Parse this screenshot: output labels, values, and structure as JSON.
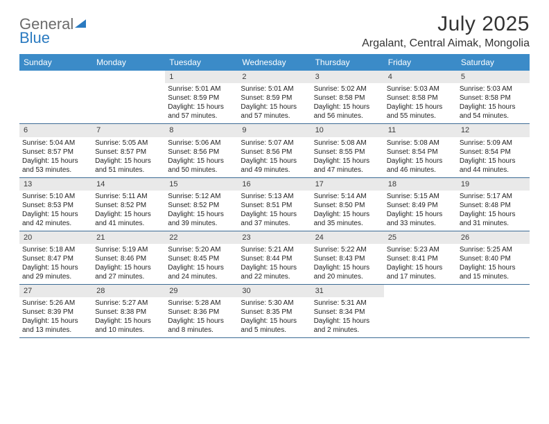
{
  "logo": {
    "text1": "General",
    "text2": "Blue"
  },
  "title": "July 2025",
  "location": "Argalant, Central Aimak, Mongolia",
  "colors": {
    "header_bg": "#3b8bc8",
    "header_text": "#ffffff",
    "daynum_bg": "#e9e9e9",
    "border": "#3b6a94",
    "logo_gray": "#6b6b6b",
    "logo_blue": "#2a7ac0"
  },
  "days_of_week": [
    "Sunday",
    "Monday",
    "Tuesday",
    "Wednesday",
    "Thursday",
    "Friday",
    "Saturday"
  ],
  "weeks": [
    [
      null,
      null,
      {
        "n": "1",
        "sr": "5:01 AM",
        "ss": "8:59 PM",
        "dl": "15 hours and 57 minutes."
      },
      {
        "n": "2",
        "sr": "5:01 AM",
        "ss": "8:59 PM",
        "dl": "15 hours and 57 minutes."
      },
      {
        "n": "3",
        "sr": "5:02 AM",
        "ss": "8:58 PM",
        "dl": "15 hours and 56 minutes."
      },
      {
        "n": "4",
        "sr": "5:03 AM",
        "ss": "8:58 PM",
        "dl": "15 hours and 55 minutes."
      },
      {
        "n": "5",
        "sr": "5:03 AM",
        "ss": "8:58 PM",
        "dl": "15 hours and 54 minutes."
      }
    ],
    [
      {
        "n": "6",
        "sr": "5:04 AM",
        "ss": "8:57 PM",
        "dl": "15 hours and 53 minutes."
      },
      {
        "n": "7",
        "sr": "5:05 AM",
        "ss": "8:57 PM",
        "dl": "15 hours and 51 minutes."
      },
      {
        "n": "8",
        "sr": "5:06 AM",
        "ss": "8:56 PM",
        "dl": "15 hours and 50 minutes."
      },
      {
        "n": "9",
        "sr": "5:07 AM",
        "ss": "8:56 PM",
        "dl": "15 hours and 49 minutes."
      },
      {
        "n": "10",
        "sr": "5:08 AM",
        "ss": "8:55 PM",
        "dl": "15 hours and 47 minutes."
      },
      {
        "n": "11",
        "sr": "5:08 AM",
        "ss": "8:54 PM",
        "dl": "15 hours and 46 minutes."
      },
      {
        "n": "12",
        "sr": "5:09 AM",
        "ss": "8:54 PM",
        "dl": "15 hours and 44 minutes."
      }
    ],
    [
      {
        "n": "13",
        "sr": "5:10 AM",
        "ss": "8:53 PM",
        "dl": "15 hours and 42 minutes."
      },
      {
        "n": "14",
        "sr": "5:11 AM",
        "ss": "8:52 PM",
        "dl": "15 hours and 41 minutes."
      },
      {
        "n": "15",
        "sr": "5:12 AM",
        "ss": "8:52 PM",
        "dl": "15 hours and 39 minutes."
      },
      {
        "n": "16",
        "sr": "5:13 AM",
        "ss": "8:51 PM",
        "dl": "15 hours and 37 minutes."
      },
      {
        "n": "17",
        "sr": "5:14 AM",
        "ss": "8:50 PM",
        "dl": "15 hours and 35 minutes."
      },
      {
        "n": "18",
        "sr": "5:15 AM",
        "ss": "8:49 PM",
        "dl": "15 hours and 33 minutes."
      },
      {
        "n": "19",
        "sr": "5:17 AM",
        "ss": "8:48 PM",
        "dl": "15 hours and 31 minutes."
      }
    ],
    [
      {
        "n": "20",
        "sr": "5:18 AM",
        "ss": "8:47 PM",
        "dl": "15 hours and 29 minutes."
      },
      {
        "n": "21",
        "sr": "5:19 AM",
        "ss": "8:46 PM",
        "dl": "15 hours and 27 minutes."
      },
      {
        "n": "22",
        "sr": "5:20 AM",
        "ss": "8:45 PM",
        "dl": "15 hours and 24 minutes."
      },
      {
        "n": "23",
        "sr": "5:21 AM",
        "ss": "8:44 PM",
        "dl": "15 hours and 22 minutes."
      },
      {
        "n": "24",
        "sr": "5:22 AM",
        "ss": "8:43 PM",
        "dl": "15 hours and 20 minutes."
      },
      {
        "n": "25",
        "sr": "5:23 AM",
        "ss": "8:41 PM",
        "dl": "15 hours and 17 minutes."
      },
      {
        "n": "26",
        "sr": "5:25 AM",
        "ss": "8:40 PM",
        "dl": "15 hours and 15 minutes."
      }
    ],
    [
      {
        "n": "27",
        "sr": "5:26 AM",
        "ss": "8:39 PM",
        "dl": "15 hours and 13 minutes."
      },
      {
        "n": "28",
        "sr": "5:27 AM",
        "ss": "8:38 PM",
        "dl": "15 hours and 10 minutes."
      },
      {
        "n": "29",
        "sr": "5:28 AM",
        "ss": "8:36 PM",
        "dl": "15 hours and 8 minutes."
      },
      {
        "n": "30",
        "sr": "5:30 AM",
        "ss": "8:35 PM",
        "dl": "15 hours and 5 minutes."
      },
      {
        "n": "31",
        "sr": "5:31 AM",
        "ss": "8:34 PM",
        "dl": "15 hours and 2 minutes."
      },
      null,
      null
    ]
  ],
  "labels": {
    "sunrise": "Sunrise:",
    "sunset": "Sunset:",
    "daylight": "Daylight:"
  }
}
